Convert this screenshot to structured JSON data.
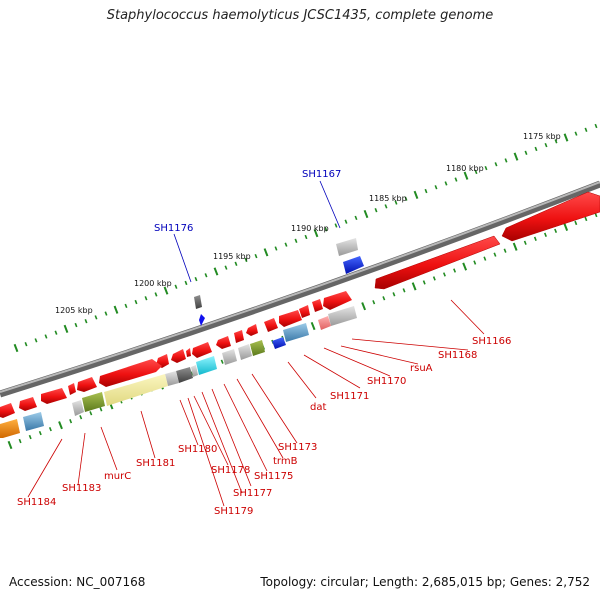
{
  "title": "Staphylococcus haemolyticus JCSC1435, complete genome",
  "footer": {
    "accession": "Accession: NC_007168",
    "topology": "Topology: circular; Length: 2,685,015 bp; Genes: 2,752"
  },
  "colors": {
    "backbone": "#777777",
    "tick": "#228B22",
    "gene_red": "#ee1111",
    "label_red": "#cc0000",
    "label_blue": "#0000bb"
  },
  "scale_labels": [
    "1175 kbp",
    "1180 kbp",
    "1185 kbp",
    "1190 kbp",
    "1195 kbp",
    "1200 kbp",
    "1205 kbp"
  ],
  "blue_labels": [
    "SH1167",
    "SH1176"
  ],
  "gene_labels": [
    "SH1166",
    "SH1168",
    "rsuA",
    "SH1170",
    "SH1171",
    "dat",
    "SH1173",
    "trmB",
    "SH1175",
    "SH1177",
    "SH1178",
    "SH1179",
    "SH1180",
    "SH1181",
    "murC",
    "SH1183",
    "SH1184"
  ]
}
